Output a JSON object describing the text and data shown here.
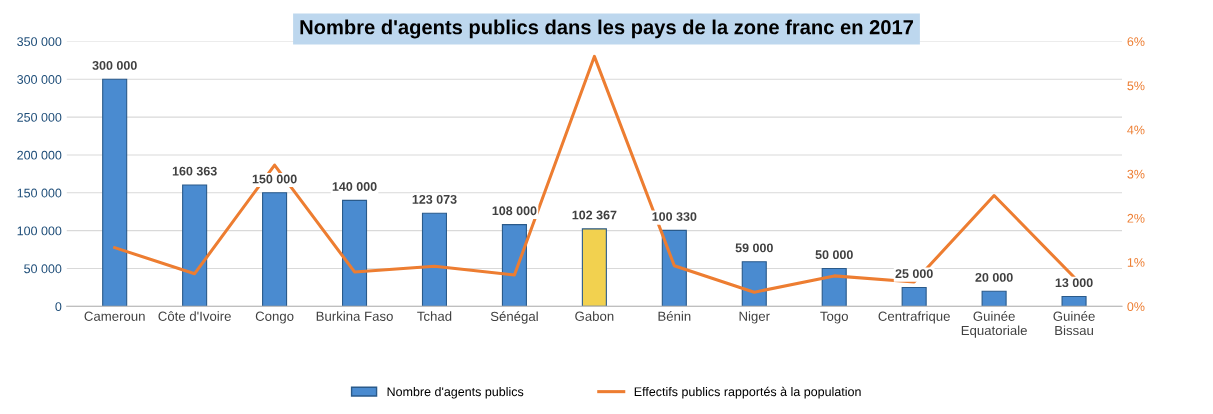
{
  "chart_data": {
    "type": "bar",
    "title": "Nombre d'agents publics dans les pays de la zone franc en 2017",
    "categories": [
      "Cameroun",
      "Côte d'Ivoire",
      "Congo",
      "Burkina Faso",
      "Tchad",
      "Sénégal",
      "Gabon",
      "Bénin",
      "Niger",
      "Togo",
      "Centrafrique",
      "Guinée\nEquatoriale",
      "Guinée\nBissau"
    ],
    "series": [
      {
        "name": "Nombre d'agents publics",
        "color": "#4a8bd0",
        "colors": [
          "#4a8bd0",
          "#4a8bd0",
          "#4a8bd0",
          "#4a8bd0",
          "#4a8bd0",
          "#4a8bd0",
          "#f2d14f",
          "#4a8bd0",
          "#4a8bd0",
          "#4a8bd0",
          "#4a8bd0",
          "#4a8bd0",
          "#4a8bd0"
        ],
        "values": [
          300000,
          160363,
          150000,
          140000,
          123073,
          108000,
          102367,
          100330,
          59000,
          50000,
          25000,
          20000,
          13000
        ],
        "value_labels": [
          "300 000",
          "160 363",
          "150 000",
          "140 000",
          "123 073",
          "108 000",
          "102 367",
          "100 330",
          "59 000",
          "50 000",
          "25 000",
          "20 000",
          "13 000"
        ]
      },
      {
        "name": "Effectifs publics rapportés à la population",
        "type": "line",
        "axis": "y2",
        "color": "#ed7d31",
        "values": [
          1.33,
          0.74,
          3.2,
          0.78,
          0.91,
          0.71,
          5.66,
          0.92,
          0.32,
          0.69,
          0.55,
          2.51,
          0.66
        ]
      }
    ],
    "ylim": [
      0,
      350000
    ],
    "yticks": [
      0,
      {
        "value": 50000,
        "label": "50 000"
      },
      {
        "value": 100000,
        "label": "100 000"
      },
      {
        "value": 150000,
        "label": "150 000"
      },
      {
        "value": 200000,
        "label": "200 000"
      },
      {
        "value": 250000,
        "label": "250 000"
      },
      {
        "value": 300000,
        "label": "300 000"
      },
      {
        "value": 350000,
        "label": "350 000"
      }
    ],
    "y2lim": [
      0,
      6
    ],
    "y2ticks": [
      {
        "value": 0,
        "label": "0%"
      },
      {
        "value": 1,
        "label": "1%"
      },
      {
        "value": 2,
        "label": "2%"
      },
      {
        "value": 3,
        "label": "3%"
      },
      {
        "value": 4,
        "label": "4%"
      },
      {
        "value": 5,
        "label": "5%"
      },
      {
        "value": 6,
        "label": "6%"
      }
    ],
    "grid": "y",
    "legend": "bottom",
    "marker": "none",
    "line_style": "solid"
  }
}
